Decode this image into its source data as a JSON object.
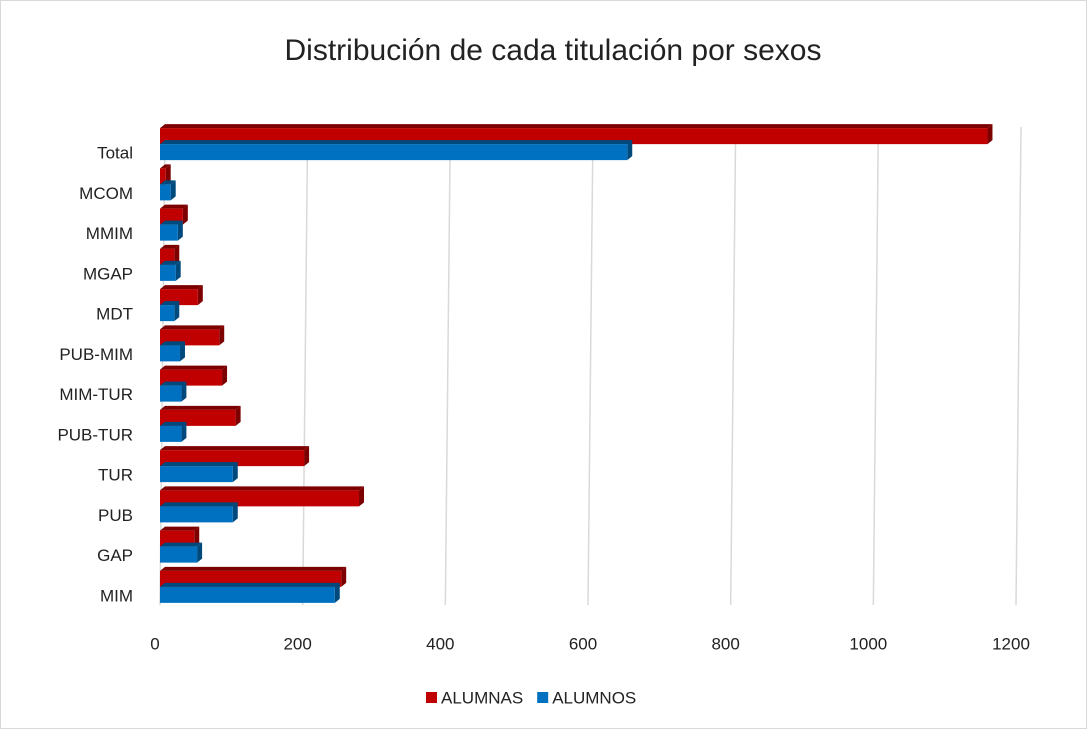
{
  "chart_data": {
    "type": "bar3d_horizontal",
    "title": "Distribución de cada titulación por sexos",
    "categories": [
      "MIM",
      "GAP",
      "PUB",
      "TUR",
      "PUB-TUR",
      "MIM-TUR",
      "PUB-MIM",
      "MDT",
      "MGAP",
      "MMIM",
      "MCOM",
      "Total"
    ],
    "series": [
      {
        "name": "ALUMNAS",
        "color": "#c00000",
        "values": [
          254,
          48,
          279,
          202,
          106,
          87,
          83,
          53,
          20,
          32,
          8,
          1160
        ]
      },
      {
        "name": "ALUMNOS",
        "color": "#0070c0",
        "values": [
          245,
          52,
          102,
          102,
          30,
          30,
          28,
          20,
          22,
          25,
          15,
          655
        ]
      }
    ],
    "xlim": [
      0,
      1200
    ],
    "xticks": [
      0,
      200,
      400,
      600,
      800,
      1000,
      1200
    ],
    "grid": true,
    "legend": "bottom"
  }
}
